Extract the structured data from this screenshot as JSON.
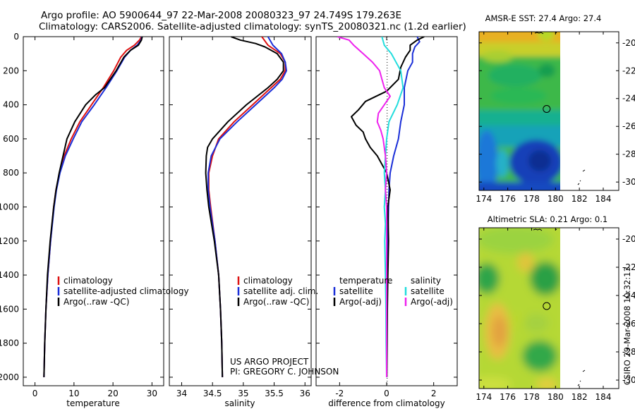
{
  "header": {
    "line1": "Argo profile: AO 5900644_97 22-Mar-2008 20080323_97 24.749S 179.263E",
    "line2": "Climatology: CARS2006. Satellite-adjusted climatology: synTS_20080321.nc (1.2d earlier)"
  },
  "stamp": "CSIRO 29-Mar-2008 10:32:13",
  "project": {
    "line1": "US ARGO PROJECT",
    "line2": "PI: GREGORY C. JOHNSON"
  },
  "colors": {
    "climatology": "#dd1111",
    "satellite": "#1a2ed8",
    "argo": "#000000",
    "salinity_satellite": "#22dddd",
    "salinity_argo": "#ee22ee"
  },
  "depth_ticks": [
    "0",
    "200",
    "400",
    "600",
    "800",
    "1000",
    "1200",
    "1400",
    "1600",
    "1800",
    "2000"
  ],
  "chart_data": [
    {
      "type": "line",
      "name": "temperature-profile",
      "xlabel": "temperature",
      "ylabel": "depth",
      "xlim": [
        -3,
        33
      ],
      "ylim": [
        2050,
        0
      ],
      "xticks": [
        "0",
        "10",
        "20",
        "30"
      ],
      "legend": [
        "climatology",
        "satellite-adjusted climatology",
        "Argo(..raw -QC)"
      ],
      "series": [
        {
          "name": "climatology",
          "color": "red",
          "depth": [
            0,
            20,
            50,
            80,
            120,
            200,
            300,
            400,
            500,
            600,
            700,
            800,
            900,
            1000,
            1200,
            1400,
            1600,
            1800,
            2000
          ],
          "values": [
            27.3,
            26.8,
            25.5,
            23.5,
            22.0,
            20.2,
            17.5,
            14.5,
            11.5,
            9.3,
            7.5,
            6.3,
            5.4,
            4.8,
            4.0,
            3.3,
            2.8,
            2.5,
            2.3
          ]
        },
        {
          "name": "satellite-adjusted climatology",
          "color": "blue",
          "depth": [
            0,
            20,
            50,
            80,
            120,
            200,
            300,
            400,
            500,
            600,
            700,
            800,
            900,
            1000,
            1200,
            1400,
            1600,
            1800,
            2000
          ],
          "values": [
            27.4,
            27.2,
            26.2,
            24.5,
            23.0,
            21.0,
            18.2,
            15.2,
            12.0,
            9.8,
            7.8,
            6.4,
            5.5,
            4.9,
            4.0,
            3.3,
            2.8,
            2.5,
            2.3
          ]
        },
        {
          "name": "Argo(..raw -QC)",
          "color": "black",
          "depth": [
            0,
            20,
            50,
            80,
            120,
            200,
            300,
            340,
            400,
            500,
            600,
            700,
            800,
            900,
            1000,
            1200,
            1400,
            1600,
            1800,
            2000
          ],
          "values": [
            27.5,
            27.3,
            26.5,
            24.5,
            22.8,
            20.8,
            17.8,
            15.6,
            13.0,
            10.2,
            8.2,
            7.2,
            6.2,
            5.4,
            4.8,
            3.9,
            3.2,
            2.8,
            2.5,
            2.3
          ]
        }
      ]
    },
    {
      "type": "line",
      "name": "salinity-profile",
      "xlabel": "salinity",
      "ylabel": "depth",
      "xlim": [
        33.8,
        36.1
      ],
      "ylim": [
        2050,
        0
      ],
      "xticks": [
        "34",
        "34.5",
        "35",
        "35.5",
        "36"
      ],
      "legend": [
        "climatology",
        "satellite adj. clim.",
        "Argo(..raw -QC)"
      ],
      "series": [
        {
          "name": "climatology",
          "color": "red",
          "depth": [
            0,
            50,
            100,
            150,
            200,
            250,
            300,
            400,
            500,
            600,
            700,
            800,
            900,
            1000,
            1200,
            1400,
            1600,
            1800,
            2000
          ],
          "values": [
            35.3,
            35.4,
            35.6,
            35.68,
            35.68,
            35.6,
            35.45,
            35.15,
            34.85,
            34.6,
            34.5,
            34.44,
            34.44,
            34.47,
            34.54,
            34.6,
            34.63,
            34.65,
            34.66
          ]
        },
        {
          "name": "satellite adj. clim.",
          "color": "blue",
          "depth": [
            0,
            50,
            100,
            150,
            200,
            250,
            300,
            400,
            500,
            600,
            700,
            800,
            900,
            1000,
            1200,
            1400,
            1600,
            1800,
            2000
          ],
          "values": [
            35.4,
            35.48,
            35.62,
            35.68,
            35.7,
            35.63,
            35.5,
            35.2,
            34.9,
            34.62,
            34.48,
            34.43,
            34.43,
            34.46,
            34.54,
            34.6,
            34.63,
            34.65,
            34.66
          ]
        },
        {
          "name": "Argo(..raw -QC)",
          "color": "black",
          "depth": [
            0,
            20,
            40,
            60,
            100,
            150,
            200,
            250,
            300,
            400,
            500,
            600,
            650,
            700,
            800,
            900,
            1000,
            1200,
            1400,
            1600,
            1800,
            2000
          ],
          "values": [
            34.8,
            34.95,
            35.2,
            35.35,
            35.55,
            35.65,
            35.65,
            35.55,
            35.4,
            35.05,
            34.75,
            34.5,
            34.42,
            34.4,
            34.39,
            34.41,
            34.44,
            34.53,
            34.6,
            34.63,
            34.65,
            34.66
          ]
        }
      ]
    },
    {
      "type": "line",
      "name": "difference-profile",
      "xlabel": "difference from climatology",
      "ylabel": "depth",
      "xlim": [
        -3,
        3
      ],
      "ylim": [
        2050,
        0
      ],
      "xticks": [
        "-2",
        "0",
        "2"
      ],
      "legend_headers": [
        "temperature",
        "salinity"
      ],
      "legend": [
        "satellite",
        "Argo(-adj)",
        "satellite",
        "Argo(-adj)"
      ],
      "series": [
        {
          "name": "temperature satellite",
          "color": "blue",
          "depth": [
            0,
            30,
            60,
            100,
            150,
            200,
            300,
            400,
            500,
            600,
            700,
            800,
            900,
            1000,
            1200,
            1400,
            1600,
            1800,
            2000
          ],
          "values": [
            1.3,
            1.4,
            1.2,
            1.1,
            1.1,
            0.9,
            0.75,
            0.75,
            0.6,
            0.5,
            0.3,
            0.15,
            0.1,
            0.08,
            0.05,
            0.03,
            0.02,
            0.01,
            0.0
          ]
        },
        {
          "name": "temperature Argo(-adj)",
          "color": "black",
          "depth": [
            0,
            20,
            50,
            80,
            120,
            180,
            250,
            320,
            380,
            430,
            470,
            520,
            560,
            600,
            650,
            700,
            800,
            900,
            1000,
            1200,
            1400,
            1600,
            1800,
            2000
          ],
          "values": [
            1.6,
            1.3,
            1.0,
            1.0,
            0.8,
            0.6,
            0.5,
            0.0,
            -0.9,
            -1.2,
            -1.5,
            -1.3,
            -1.0,
            -0.9,
            -0.7,
            -0.4,
            0.0,
            0.15,
            0.05,
            0.08,
            0.05,
            0.03,
            0.02,
            0.01
          ]
        },
        {
          "name": "salinity satellite",
          "color": "cyan",
          "depth": [
            0,
            50,
            100,
            150,
            200,
            300,
            400,
            500,
            600,
            700,
            800,
            900,
            1000,
            1100,
            1200,
            1400,
            1600,
            1800,
            2000
          ],
          "values": [
            -0.2,
            -0.1,
            0.2,
            0.4,
            0.6,
            0.7,
            0.45,
            0.1,
            0.0,
            -0.05,
            -0.1,
            -0.05,
            -0.1,
            -0.05,
            -0.08,
            -0.05,
            -0.03,
            -0.02,
            0.0
          ]
        },
        {
          "name": "salinity Argo(-adj)",
          "color": "magenta",
          "depth": [
            0,
            20,
            50,
            100,
            150,
            200,
            250,
            300,
            350,
            400,
            450,
            500,
            550,
            600,
            700,
            800,
            900,
            1000,
            1200,
            1400,
            1600,
            1800,
            2000
          ],
          "values": [
            -2.1,
            -1.6,
            -1.4,
            -1.0,
            -0.6,
            -0.3,
            -0.2,
            -0.1,
            0.15,
            -0.1,
            -0.35,
            -0.4,
            -0.25,
            -0.15,
            -0.05,
            0.0,
            -0.05,
            0.0,
            0.0,
            0.0,
            0.0,
            0.0,
            0.0
          ]
        }
      ]
    },
    {
      "type": "heatmap",
      "name": "amsr-e-sst-map",
      "title": "AMSR-E SST: 27.4  Argo: 27.4",
      "xlim": [
        173.6,
        185.3
      ],
      "ylim": [
        -30.6,
        -19.2
      ],
      "xticks": [
        "174",
        "176",
        "178",
        "180",
        "182",
        "184"
      ],
      "yticks": [
        "-20",
        "-22",
        "-24",
        "-26",
        "-28",
        "-30"
      ],
      "data_extent_lon": [
        173.6,
        180.3
      ],
      "float_position": {
        "lon": 179.263,
        "lat": -24.749
      }
    },
    {
      "type": "heatmap",
      "name": "altimetric-sla-map",
      "title": "Altimetric SLA: 0.21  Argo: 0.1",
      "xlim": [
        173.6,
        185.3
      ],
      "ylim": [
        -30.6,
        -19.2
      ],
      "xticks": [
        "174",
        "176",
        "178",
        "180",
        "182",
        "184"
      ],
      "yticks": [
        "-20",
        "-22",
        "-24",
        "-26",
        "-28",
        "-30"
      ],
      "data_extent_lon": [
        173.6,
        180.3
      ],
      "float_position": {
        "lon": 179.263,
        "lat": -24.749
      }
    }
  ]
}
